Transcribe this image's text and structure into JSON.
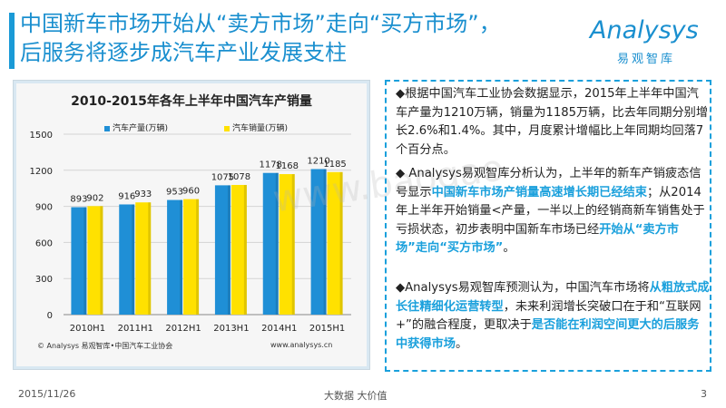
{
  "title": {
    "line1": "中国新车市场开始从“卖方市场”走向“买方市场”，",
    "line2": "后服务将逐步成汽车产业发展支柱"
  },
  "logo": {
    "main": "Analysys",
    "sub": "易观智库"
  },
  "chart_data": {
    "type": "bar",
    "title": "2010-2015年各年上半年中国汽车产销量",
    "categories": [
      "2010H1",
      "2011H1",
      "2012H1",
      "2013H1",
      "2014H1",
      "2015H1"
    ],
    "series": [
      {
        "name": "汽车产量(万辆)",
        "values": [
          893,
          916,
          953,
          1075,
          1178,
          1210
        ],
        "color": "#1f8fd6"
      },
      {
        "name": "汽车销量(万辆)",
        "values": [
          902,
          933,
          960,
          1078,
          1168,
          1185
        ],
        "color": "#ffe100"
      }
    ],
    "ylim": [
      0,
      1500
    ],
    "yticks": [
      "0",
      "300",
      "600",
      "900",
      "1200",
      "1500"
    ],
    "grid": true,
    "legend_position": "top",
    "source_note": "© Analysys 易观智库•中国汽车工业协会",
    "source_url": "www.analysys.cn"
  },
  "panel": {
    "p1": "◆根据中国汽车工业协会数据显示，2015年上半年中国汽车产量为1210万辆，销量为1185万辆，比去年同期分别增长2.6%和1.4%。其中，月度累计增幅比上年同期均回落7个百分点。",
    "p2_a": "◆ Analysys易观智库分析认为，上半年的新车产销疲态信号显示",
    "p2_h1": "中国新车市场产销量高速增长期已经结束",
    "p2_b": "；从2014年上半年开始销量<产量，一半以上的经销商新车销售处于亏损状态，初步表明中国新车市场已经",
    "p2_h2": "开始从“卖方市场”走向“买方市场”",
    "p2_c": "。",
    "p3_a": "◆Analysys易观智库预测认为，中国汽车市场将",
    "p3_h1": "从粗放式成长往精细化运营转型",
    "p3_b": "，未来利润增长突破口在于和“互联网+”的融合程度，更取决于",
    "p3_h2": "是否能在利润空间更大的后服务中获得市场",
    "p3_c": "。"
  },
  "footer": {
    "date": "2015/11/26",
    "center": "大数据    大价值",
    "page": "3"
  }
}
